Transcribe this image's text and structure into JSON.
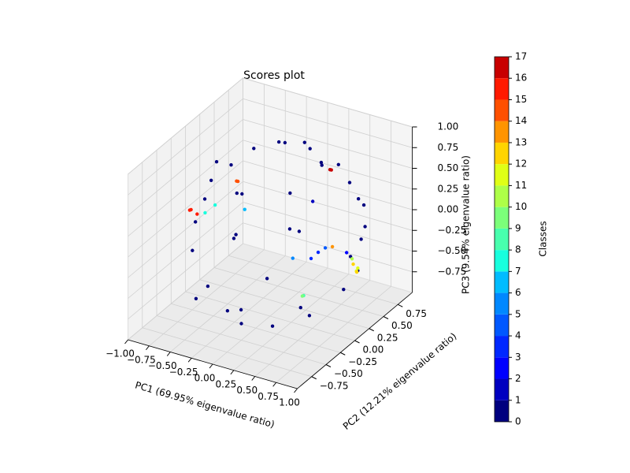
{
  "chart_data": {
    "type": "scatter3d",
    "title": "Scores plot",
    "xlabel": "PC1 (69.95% eigenvalue ratio)",
    "ylabel": "PC2 (12.21% eigenvalue ratio)",
    "zlabel": "PC3 (9.54% eigenvalue ratio)",
    "colorbar_label": "Classes",
    "x": [
      -0.9,
      -0.8,
      -0.6,
      -0.3,
      0,
      0.2,
      0.4,
      0.6,
      0.7,
      0.85,
      0.9,
      0.8,
      0.6,
      0.3,
      0,
      -0.3,
      -0.6,
      -0.85,
      -0.95,
      -0.7,
      -0.4,
      -0.2,
      0.1,
      0.3,
      -0.5,
      0,
      0.5,
      -0.8,
      -0.2,
      0.2,
      0.7,
      -0.4,
      0.95,
      0.6,
      -0.1,
      0.4,
      -0.7,
      0.1,
      -0.95,
      -0.93,
      -0.9,
      -0.6,
      -0.55,
      0.3,
      0.35,
      0.9,
      0.85,
      0.88,
      0.82,
      0.5,
      0.45,
      0.55,
      0.6,
      0.55,
      -0.7,
      -0.65,
      0.6,
      -0.3,
      0.2,
      0.3,
      0.7,
      0.9
    ],
    "y": [
      0.3,
      0.5,
      0.6,
      0.7,
      0.6,
      0.4,
      0.3,
      0.5,
      0.6,
      0.4,
      0.2,
      0.1,
      -0.2,
      -0.4,
      -0.5,
      -0.3,
      -0.2,
      -0.1,
      0.1,
      0.4,
      0.1,
      -0.3,
      0.2,
      -0.1,
      -0.4,
      0.9,
      0.8,
      0.6,
      0.8,
      -0.8,
      -0.5,
      -0.7,
      0,
      0.7,
      0.3,
      0.6,
      0.1,
      -0.2,
      0,
      0.1,
      -0.05,
      0.3,
      0.25,
      0.6,
      0.55,
      0.2,
      0.25,
      0.15,
      0.3,
      0.1,
      0.05,
      0.15,
      -0.3,
      -0.25,
      -0.1,
      0,
      0.2,
      0,
      0.1,
      0.3,
      0.3,
      0.1
    ],
    "z": [
      0.2,
      0.3,
      0.5,
      0.6,
      0.75,
      0.85,
      0.8,
      0.5,
      0.2,
      0.1,
      -0.3,
      -0.5,
      -0.7,
      -0.8,
      -0.8,
      -0.85,
      -0.7,
      -0.4,
      -0.2,
      -0.5,
      0.3,
      0.1,
      0.4,
      0.2,
      0.5,
      0.3,
      0.1,
      -0.1,
      -0.5,
      -0.4,
      -0.4,
      -0.5,
      0,
      -0.3,
      0.9,
      0.6,
      0.6,
      -0.4,
      0,
      -0.1,
      0.05,
      0.28,
      0.32,
      0.51,
      0.55,
      -0.27,
      -0.35,
      -0.2,
      -0.4,
      -0.14,
      -0.2,
      -0.1,
      -0.4,
      -0.45,
      0.1,
      0.15,
      -0.1,
      0.2,
      -0.3,
      0.3,
      -0.2,
      -0.1
    ],
    "classes": [
      0,
      0,
      0,
      0,
      0,
      0,
      0,
      0,
      0,
      0,
      0,
      0,
      0,
      0,
      0,
      0,
      0,
      0,
      0,
      0,
      0,
      0,
      0,
      0,
      0,
      0,
      0,
      0,
      0,
      0,
      0,
      0,
      0,
      0,
      0,
      0,
      0,
      0,
      15,
      15,
      15,
      14,
      14,
      16,
      16,
      11,
      11,
      12,
      12,
      3,
      3,
      4,
      8,
      9,
      7,
      7,
      13,
      6,
      5,
      1,
      2,
      10
    ],
    "colormap": [
      "#00007f",
      "#0000c0",
      "#0000ff",
      "#0028ff",
      "#0058ff",
      "#0088ff",
      "#00bcff",
      "#18ffde",
      "#48ffae",
      "#7cff7a",
      "#aeff48",
      "#e0ff16",
      "#ffd400",
      "#ff9400",
      "#ff5000",
      "#ff1a00",
      "#c80000",
      "#7f0000"
    ],
    "xlim": [
      -1,
      1
    ],
    "ylim": [
      -1,
      1
    ],
    "zlim": [
      -1,
      1
    ],
    "xticks": [
      {
        "value": -1,
        "label": "−1.00"
      },
      {
        "value": -0.75,
        "label": "−0.75"
      },
      {
        "value": -0.5,
        "label": "−0.50"
      },
      {
        "value": -0.25,
        "label": "−0.25"
      },
      {
        "value": 0,
        "label": "0.00"
      },
      {
        "value": 0.25,
        "label": "0.25"
      },
      {
        "value": 0.5,
        "label": "0.50"
      },
      {
        "value": 0.75,
        "label": "0.75"
      },
      {
        "value": 1,
        "label": "1.00"
      }
    ],
    "yticks": [
      {
        "value": -0.75,
        "label": "−0.75"
      },
      {
        "value": -0.5,
        "label": "−0.50"
      },
      {
        "value": -0.25,
        "label": "−0.25"
      },
      {
        "value": 0,
        "label": "0.00"
      },
      {
        "value": 0.25,
        "label": "0.25"
      },
      {
        "value": 0.5,
        "label": "0.50"
      },
      {
        "value": 0.75,
        "label": "0.75"
      }
    ],
    "zticks": [
      {
        "value": -0.75,
        "label": "−0.75"
      },
      {
        "value": -0.5,
        "label": "−0.50"
      },
      {
        "value": -0.25,
        "label": "−0.25"
      },
      {
        "value": 0,
        "label": "0.00"
      },
      {
        "value": 0.25,
        "label": "0.25"
      },
      {
        "value": 0.5,
        "label": "0.50"
      },
      {
        "value": 0.75,
        "label": "0.75"
      },
      {
        "value": 1,
        "label": "1.00"
      }
    ],
    "clim": [
      0,
      17
    ],
    "cticks": [
      0,
      1,
      2,
      3,
      4,
      5,
      6,
      7,
      8,
      9,
      10,
      11,
      12,
      13,
      14,
      15,
      16,
      17
    ],
    "grid": true
  }
}
